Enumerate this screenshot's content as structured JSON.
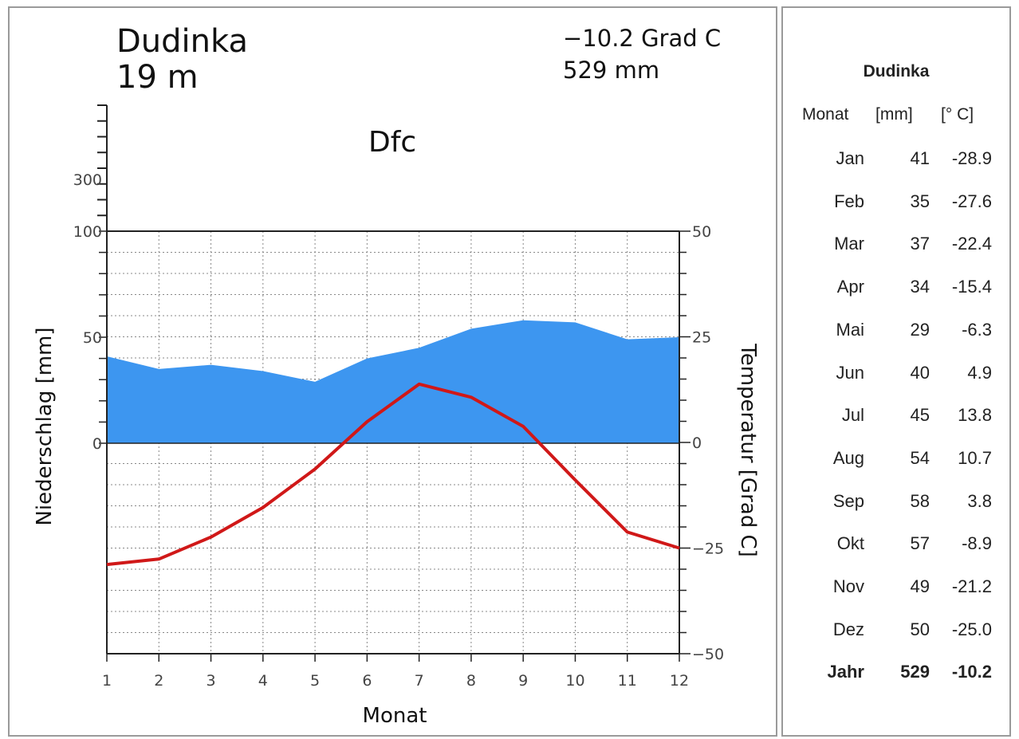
{
  "station": {
    "name": "Dudinka",
    "elevation": "19 m",
    "annual_temp": "−10.2 Grad C",
    "annual_precip": "529 mm",
    "koppen": "Dfc"
  },
  "axes": {
    "left_label": "Niederschlag [mm]",
    "right_label": "Temperatur [Grad C]",
    "x_label": "Monat",
    "left_ticks": [
      "300",
      "100",
      "50",
      "0"
    ],
    "right_ticks": [
      "50",
      "25",
      "0",
      "−25",
      "−50"
    ],
    "x_ticks": [
      "1",
      "2",
      "3",
      "4",
      "5",
      "6",
      "7",
      "8",
      "9",
      "10",
      "11",
      "12"
    ]
  },
  "colors": {
    "precip_fill": "#3d96f0",
    "temp_line": "#d01818",
    "grid": "#888888"
  },
  "chart_data": {
    "type": "line",
    "x": [
      1,
      2,
      3,
      4,
      5,
      6,
      7,
      8,
      9,
      10,
      11,
      12
    ],
    "series": [
      {
        "name": "Niederschlag [mm]",
        "kind": "area",
        "axis": "left",
        "values": [
          41,
          35,
          37,
          34,
          29,
          40,
          45,
          54,
          58,
          57,
          49,
          50
        ]
      },
      {
        "name": "Temperatur [Grad C]",
        "kind": "line",
        "axis": "right",
        "values": [
          -28.9,
          -27.6,
          -22.4,
          -15.4,
          -6.3,
          4.9,
          13.8,
          10.7,
          3.8,
          -8.9,
          -21.2,
          -25.0
        ]
      }
    ],
    "ylim_precip": [
      0,
      100
    ],
    "ylim_temp": [
      -50,
      50
    ],
    "xlim": [
      1,
      12
    ],
    "grid": true
  },
  "table": {
    "title": "Dudinka",
    "headers": [
      "Monat",
      "[mm]",
      "[° C]"
    ],
    "rows": [
      {
        "month": "Jan",
        "mm": "41",
        "temp": "-28.9"
      },
      {
        "month": "Feb",
        "mm": "35",
        "temp": "-27.6"
      },
      {
        "month": "Mar",
        "mm": "37",
        "temp": "-22.4"
      },
      {
        "month": "Apr",
        "mm": "34",
        "temp": "-15.4"
      },
      {
        "month": "Mai",
        "mm": "29",
        "temp": "-6.3"
      },
      {
        "month": "Jun",
        "mm": "40",
        "temp": "4.9"
      },
      {
        "month": "Jul",
        "mm": "45",
        "temp": "13.8"
      },
      {
        "month": "Aug",
        "mm": "54",
        "temp": "10.7"
      },
      {
        "month": "Sep",
        "mm": "58",
        "temp": "3.8"
      },
      {
        "month": "Okt",
        "mm": "57",
        "temp": "-8.9"
      },
      {
        "month": "Nov",
        "mm": "49",
        "temp": "-21.2"
      },
      {
        "month": "Dez",
        "mm": "50",
        "temp": "-25.0"
      }
    ],
    "total": {
      "month": "Jahr",
      "mm": "529",
      "temp": "-10.2"
    }
  }
}
